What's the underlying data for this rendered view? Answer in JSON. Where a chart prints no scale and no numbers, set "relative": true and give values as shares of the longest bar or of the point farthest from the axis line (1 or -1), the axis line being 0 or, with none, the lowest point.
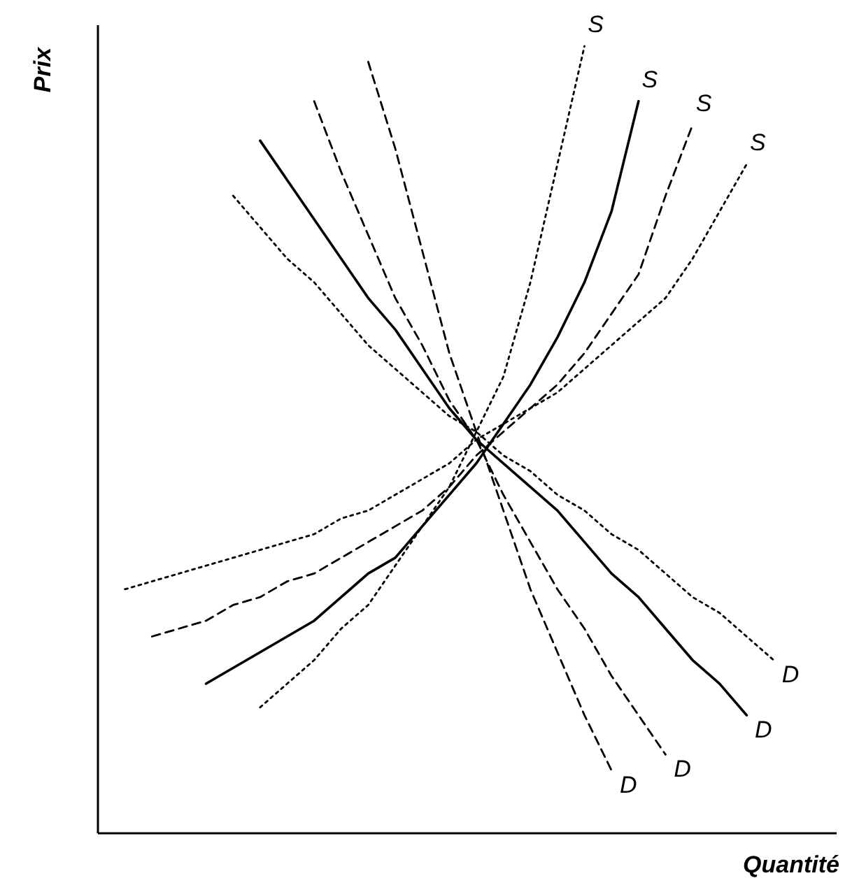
{
  "chart_data": {
    "type": "line",
    "relative": true,
    "xlabel": "Quantité",
    "ylabel": "Prix",
    "marker": "none",
    "categories": [
      null,
      null,
      null,
      null,
      null,
      null,
      null,
      null,
      null,
      null,
      null,
      null,
      null,
      null,
      null,
      null,
      null,
      null,
      null,
      null,
      null,
      null,
      null,
      null,
      null,
      null
    ],
    "series": [
      {
        "name": "S",
        "color": "#000000",
        "line_style": "dotted",
        "values": [
          null,
          null,
          null,
          null,
          null,
          null,
          0.16,
          0.19,
          0.22,
          0.26,
          0.29,
          0.34,
          0.39,
          0.44,
          0.51,
          0.58,
          0.7,
          0.85,
          1.0,
          null,
          null,
          null,
          null,
          null,
          null,
          null
        ]
      },
      {
        "name": "S",
        "color": "#000000",
        "line_style": "solid",
        "values": [
          null,
          null,
          null,
          null,
          0.19,
          0.21,
          0.23,
          0.25,
          0.27,
          0.3,
          0.33,
          0.35,
          0.39,
          0.43,
          0.47,
          0.52,
          0.57,
          0.63,
          0.7,
          0.79,
          0.93,
          null,
          null,
          null,
          null,
          null
        ]
      },
      {
        "name": "S",
        "color": "#000000",
        "line_style": "dashed",
        "values": [
          null,
          null,
          0.25,
          0.26,
          0.27,
          0.29,
          0.3,
          0.32,
          0.33,
          0.35,
          0.37,
          0.39,
          0.41,
          0.44,
          0.48,
          0.51,
          0.54,
          0.57,
          0.61,
          0.66,
          0.71,
          0.81,
          0.9,
          null,
          null,
          null
        ]
      },
      {
        "name": "S",
        "color": "#000000",
        "line_style": "dotted",
        "values": [
          null,
          0.31,
          0.32,
          0.33,
          0.34,
          0.35,
          0.36,
          0.37,
          0.38,
          0.4,
          0.41,
          0.43,
          0.45,
          0.47,
          0.5,
          0.52,
          0.54,
          0.56,
          0.59,
          0.62,
          0.65,
          0.68,
          0.73,
          0.79,
          0.85,
          null
        ]
      },
      {
        "name": "D",
        "color": "#000000",
        "line_style": "dotted",
        "values": [
          null,
          null,
          null,
          null,
          null,
          0.81,
          0.77,
          0.73,
          0.7,
          0.66,
          0.62,
          0.59,
          0.56,
          0.53,
          0.51,
          0.48,
          0.46,
          0.43,
          0.41,
          0.38,
          0.36,
          0.33,
          0.3,
          0.28,
          0.25,
          0.22
        ]
      },
      {
        "name": "D",
        "color": "#000000",
        "line_style": "solid",
        "values": [
          null,
          null,
          null,
          null,
          null,
          null,
          0.88,
          0.83,
          0.78,
          0.73,
          0.68,
          0.64,
          0.59,
          0.54,
          0.5,
          0.47,
          0.44,
          0.41,
          0.37,
          0.33,
          0.3,
          0.26,
          0.22,
          0.19,
          0.15,
          null
        ]
      },
      {
        "name": "D",
        "color": "#000000",
        "line_style": "dashed",
        "values": [
          null,
          null,
          null,
          null,
          null,
          null,
          null,
          null,
          0.93,
          0.84,
          0.76,
          0.68,
          0.62,
          0.55,
          0.5,
          0.43,
          0.37,
          0.31,
          0.26,
          0.2,
          0.15,
          0.1,
          null,
          null,
          null,
          null
        ]
      },
      {
        "name": "D",
        "color": "#000000",
        "line_style": "dashed",
        "values": [
          null,
          null,
          null,
          null,
          null,
          null,
          null,
          null,
          null,
          null,
          0.98,
          0.87,
          0.74,
          0.61,
          0.51,
          0.41,
          0.31,
          0.23,
          0.15,
          0.08,
          null,
          null,
          null,
          null,
          null,
          null
        ]
      }
    ]
  }
}
